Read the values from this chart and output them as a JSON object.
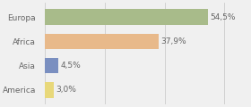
{
  "categories": [
    "Europa",
    "Africa",
    "Asia",
    "America"
  ],
  "values": [
    54.5,
    37.9,
    4.5,
    3.0
  ],
  "labels": [
    "54,5%",
    "37,9%",
    "4,5%",
    "3,0%"
  ],
  "bar_colors": [
    "#a8bb8a",
    "#e8b98a",
    "#7a8fc0",
    "#e8d87a"
  ],
  "background_color": "#f0f0f0",
  "xlim": [
    0,
    68
  ],
  "label_fontsize": 6.5,
  "category_fontsize": 6.5,
  "bar_height": 0.65,
  "grid_ticks": [
    0,
    20,
    40,
    60
  ],
  "grid_color": "#cccccc",
  "text_color": "#666666"
}
